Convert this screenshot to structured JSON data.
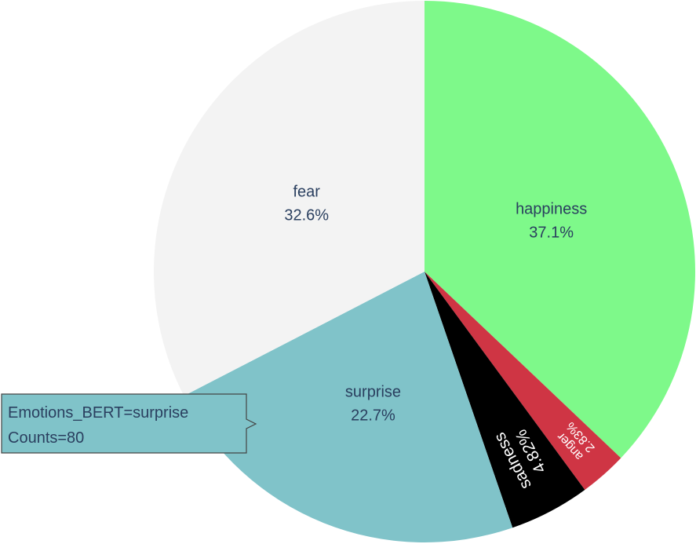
{
  "chart_data": {
    "type": "pie",
    "slices": [
      {
        "label": "happiness",
        "percent_text": "37.1%",
        "value": 37.1,
        "color": "#7ef98a",
        "text_color": "#2a3f5f",
        "label_mode": "inside"
      },
      {
        "label": "anger",
        "percent_text": "2.83%",
        "value": 2.83,
        "color": "#cf3544",
        "text_color": "#ffffff",
        "label_mode": "radial-small"
      },
      {
        "label": "sadness",
        "percent_text": "4.82%",
        "value": 4.82,
        "color": "#000000",
        "text_color": "#ffffff",
        "label_mode": "radial"
      },
      {
        "label": "surprise",
        "percent_text": "22.7%",
        "value": 22.7,
        "color": "#80c3c9",
        "text_color": "#2a3f5f",
        "label_mode": "inside"
      },
      {
        "label": "fear",
        "percent_text": "32.6%",
        "value": 32.6,
        "color": "#f3f3f3",
        "text_color": "#2a3f5f",
        "label_mode": "inside"
      }
    ],
    "direction": "clockwise",
    "start_angle": "top (12 o'clock)",
    "tooltip": {
      "line1": "Emotions_BERT=surprise",
      "line2": "Counts=80",
      "slice": "surprise"
    }
  }
}
